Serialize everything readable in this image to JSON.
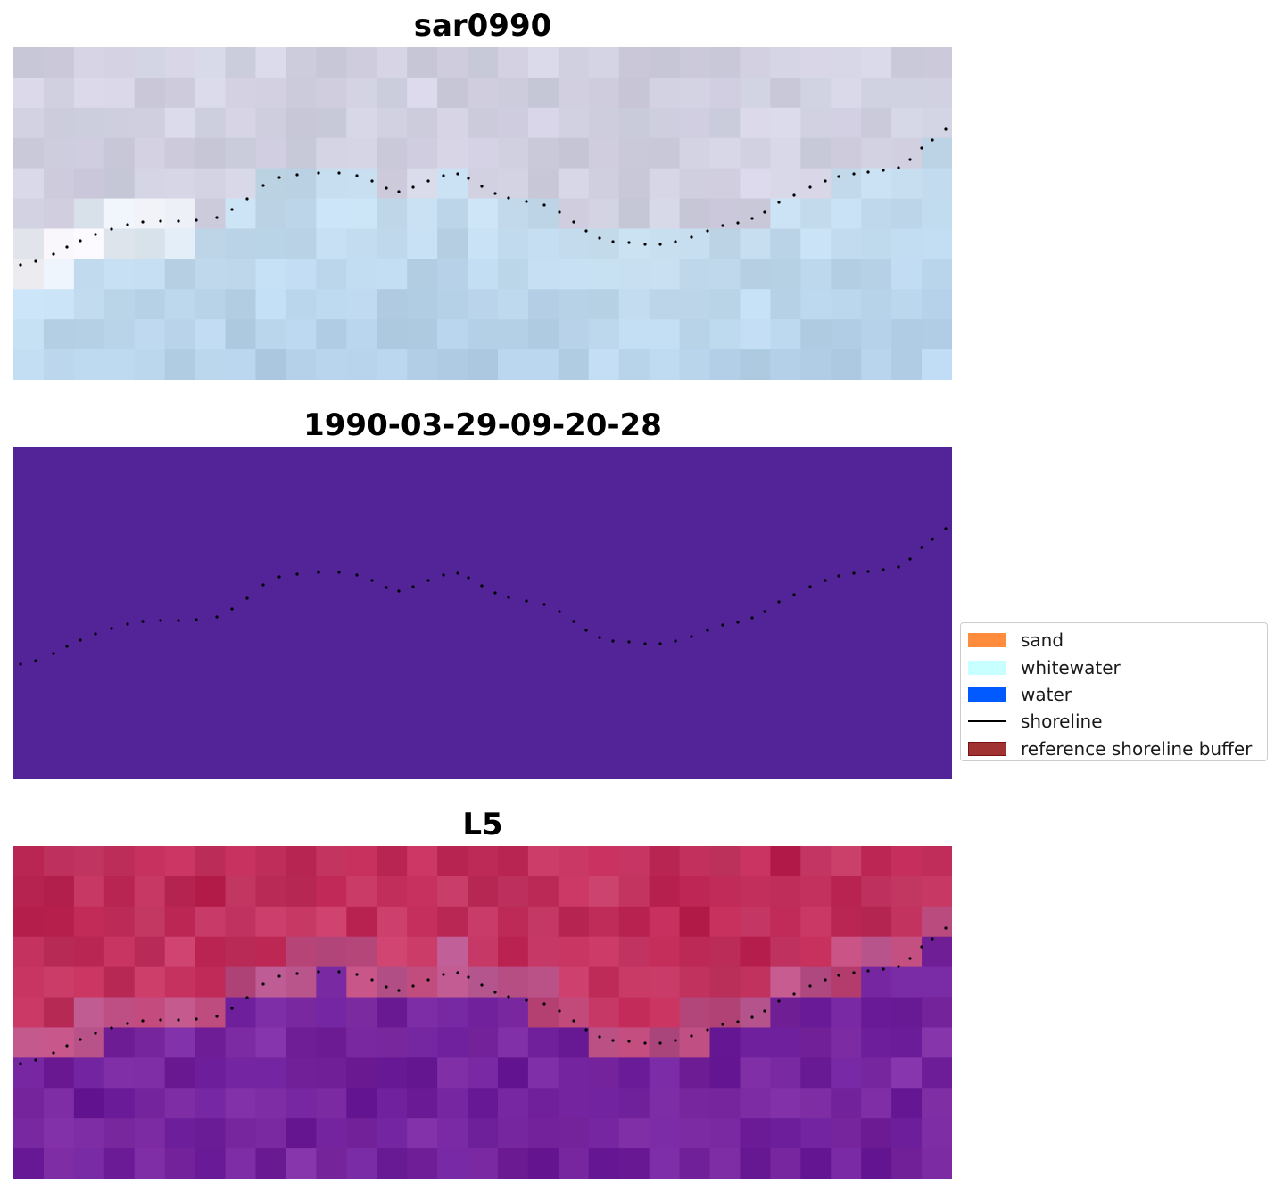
{
  "chart_data": [
    {
      "type": "heatmap",
      "title": "sar0990",
      "xlabel": "",
      "ylabel": "",
      "axes_visible": false,
      "colors": {
        "background_top": "#cfd0e0",
        "background_bottom": "#b5d2ea",
        "highlight": "#fdf5f7",
        "shoreline_dots": "#000000"
      },
      "overlay": "shoreline-dots"
    },
    {
      "type": "heatmap",
      "title": "1990-03-29-09-20-28",
      "xlabel": "",
      "ylabel": "",
      "axes_visible": false,
      "colors": {
        "fill": "#522497",
        "shoreline_dots": "#000000"
      },
      "overlay": "shoreline-dots"
    },
    {
      "type": "heatmap",
      "title": "L5",
      "xlabel": "",
      "ylabel": "",
      "axes_visible": false,
      "colors": {
        "upper": "#bd2553",
        "transition": "#b4558e",
        "lower": "#6a1c99",
        "shoreline_dots": "#000000"
      },
      "overlay": "shoreline-dots"
    }
  ],
  "legend": {
    "placement": "center-right",
    "items": [
      {
        "label": "sand",
        "kind": "patch",
        "color": "#ff8c3c",
        "edge": "#ff8c3c"
      },
      {
        "label": "whitewater",
        "kind": "patch",
        "color": "#c8ffff",
        "edge": "#c8ffff"
      },
      {
        "label": "water",
        "kind": "patch",
        "color": "#005aff",
        "edge": "#005aff"
      },
      {
        "label": "shoreline",
        "kind": "line",
        "color": "#000000"
      },
      {
        "label": "reference shoreline buffer",
        "kind": "patch",
        "color": "#a03232",
        "edge": "#7a1010"
      }
    ]
  }
}
